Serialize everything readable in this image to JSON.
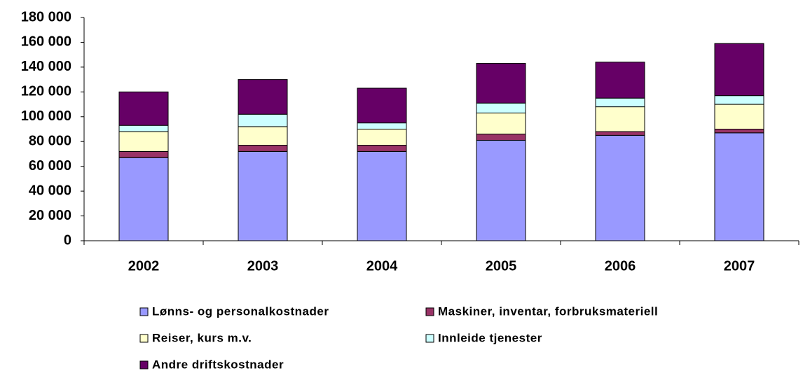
{
  "chart_data": {
    "type": "stacked_bar",
    "categories": [
      "2002",
      "2003",
      "2004",
      "2005",
      "2006",
      "2007"
    ],
    "series": [
      {
        "name": "Lønns- og personalkostnader",
        "color": "#9999ff",
        "values": [
          67000,
          72000,
          72000,
          81000,
          85000,
          87000
        ]
      },
      {
        "name": "Maskiner, inventar, forbruksmateriell",
        "color": "#993366",
        "values": [
          5000,
          5000,
          5000,
          5000,
          3000,
          3000
        ]
      },
      {
        "name": "Reiser, kurs m.v.",
        "color": "#ffffcc",
        "values": [
          16000,
          15000,
          13000,
          17000,
          20000,
          20000
        ]
      },
      {
        "name": "Innleide tjenester",
        "color": "#ccffff",
        "values": [
          5000,
          10000,
          5000,
          8000,
          7000,
          7000
        ]
      },
      {
        "name": "Andre driftskostnader",
        "color": "#660066",
        "values": [
          27000,
          28000,
          28000,
          32000,
          29000,
          42000
        ]
      }
    ],
    "ylim": [
      0,
      180000
    ],
    "yticks": [
      0,
      {
        "value": 20000,
        "label": "20 000"
      },
      {
        "value": 40000,
        "label": "40 000"
      },
      {
        "value": 60000,
        "label": "60 000"
      },
      {
        "value": 80000,
        "label": "80 000"
      },
      {
        "value": 100000,
        "label": "100 000"
      },
      {
        "value": 120000,
        "label": "120 000"
      },
      {
        "value": 140000,
        "label": "140 000"
      },
      {
        "value": 160000,
        "label": "160 000"
      },
      {
        "value": 180000,
        "label": "180 000"
      }
    ],
    "grid": false
  }
}
